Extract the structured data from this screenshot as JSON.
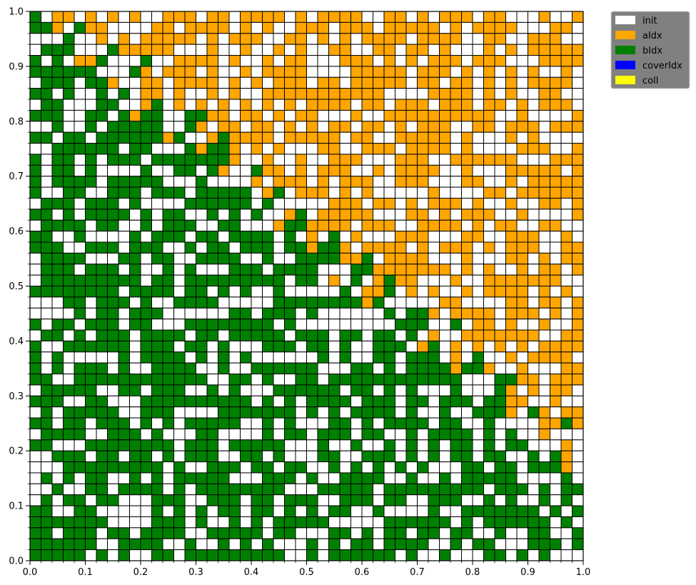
{
  "chart_data": {
    "type": "heatmap",
    "grid": {
      "rows": 50,
      "cols": 50
    },
    "xlim": [
      0.0,
      1.0
    ],
    "ylim": [
      0.0,
      1.0
    ],
    "x_ticks": [
      "0.0",
      "0.1",
      "0.2",
      "0.3",
      "0.4",
      "0.5",
      "0.6",
      "0.7",
      "0.8",
      "0.9",
      "1.0"
    ],
    "y_ticks": [
      "0.0",
      "0.1",
      "0.2",
      "0.3",
      "0.4",
      "0.5",
      "0.6",
      "0.7",
      "0.8",
      "0.9",
      "1.0"
    ],
    "categories": [
      {
        "name": "init",
        "color": "#ffffff"
      },
      {
        "name": "aIdx",
        "color": "#ffa500"
      },
      {
        "name": "bIdx",
        "color": "#008000"
      },
      {
        "name": "coverIdx",
        "color": "#0000ff"
      },
      {
        "name": "coll",
        "color": "#ffff00"
      }
    ],
    "legend": {
      "placement": "outside-top-right"
    },
    "grid_lines": true,
    "cell_color_rule": "Cells are approximately split by the anti-diagonal boundary: cells above the line y = 1.03 - 0.85x (roughly) are aIdx (orange) or init (white); cells below are bIdx (green) or init (white), with about 40% of cells in each region being init.",
    "fill_fraction": 0.6
  }
}
